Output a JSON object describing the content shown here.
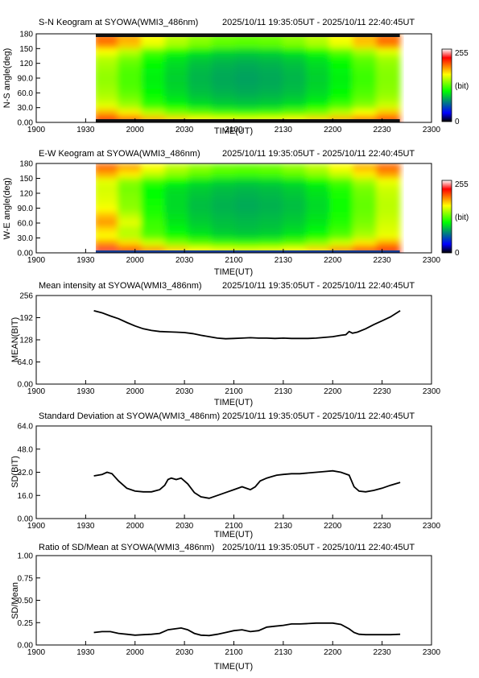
{
  "panels": [
    {
      "id": "sn",
      "title": "S-N Keogram at SYOWA(WMI3_486nm)",
      "time_range": "2025/10/11 19:35:05UT - 2025/10/11 22:40:45UT",
      "ylabel": "N-S angle(deg)",
      "xlabel": "TIME(UT)",
      "yticks": [
        "0.00",
        "30.0",
        "60.0",
        "90.0",
        "120",
        "150",
        "180"
      ],
      "xticks": [
        "1900",
        "1930",
        "2000",
        "2030",
        "2100",
        "2130",
        "2200",
        "2230",
        "2300"
      ],
      "colorbar": {
        "max": "255",
        "unit": "(bit)",
        "min": "0"
      }
    },
    {
      "id": "ew",
      "title": "E-W Keogram at SYOWA(WMI3_486nm)",
      "time_range": "2025/10/11 19:35:05UT - 2025/10/11 22:40:45UT",
      "ylabel": "W-E angle(deg)",
      "xlabel": "TIME(UT)",
      "yticks": [
        "0.00",
        "30.0",
        "60.0",
        "90.0",
        "120",
        "150",
        "180"
      ],
      "xticks": [
        "1900",
        "1930",
        "2000",
        "2030",
        "2100",
        "2130",
        "2200",
        "2230",
        "2300"
      ],
      "colorbar": {
        "max": "255",
        "unit": "(bit)",
        "min": "0"
      }
    },
    {
      "id": "mean",
      "title": "Mean intensity at SYOWA(WMI3_486nm)",
      "time_range": "2025/10/11 19:35:05UT - 2025/10/11 22:40:45UT",
      "ylabel": "MEAN(BIT)",
      "xlabel": "TIME(UT)",
      "yticks": [
        "0.00",
        "64.0",
        "128",
        "192",
        "256"
      ],
      "xticks": [
        "1900",
        "1930",
        "2000",
        "2030",
        "2100",
        "2130",
        "2200",
        "2230",
        "2300"
      ]
    },
    {
      "id": "sd",
      "title": "Standard Deviation at SYOWA(WMI3_486nm)",
      "time_range": "2025/10/11 19:35:05UT - 2025/10/11 22:40:45UT",
      "ylabel": "SD(BIT)",
      "xlabel": "TIME(UT)",
      "yticks": [
        "0.00",
        "16.0",
        "32.0",
        "48.0",
        "64.0"
      ],
      "xticks": [
        "1900",
        "1930",
        "2000",
        "2030",
        "2100",
        "2130",
        "2200",
        "2230",
        "2300"
      ]
    },
    {
      "id": "ratio",
      "title": "Ratio of SD/Mean at SYOWA(WMI3_486nm)",
      "time_range": "2025/10/11 19:35:05UT - 2025/10/11 22:40:45UT",
      "ylabel": "SD/Mean",
      "xlabel": "TIME(UT)",
      "yticks": [
        "0.00",
        "0.25",
        "0.50",
        "0.75",
        "1.00"
      ],
      "xticks": [
        "1900",
        "1930",
        "2000",
        "2030",
        "2100",
        "2130",
        "2200",
        "2230",
        "2300"
      ]
    }
  ],
  "chart_data": [
    {
      "type": "heatmap",
      "title": "S-N Keogram at SYOWA(WMI3_486nm)",
      "subtitle": "2025/10/11 19:35:05UT - 2025/10/11 22:40:45UT",
      "xlabel": "TIME(UT)",
      "ylabel": "N-S angle(deg)",
      "xlim": [
        1140,
        1380
      ],
      "ylim": [
        0,
        180
      ],
      "data_time_range_min": [
        1175.08,
        1360.75
      ],
      "colorbar": {
        "min": 0,
        "max": 255,
        "unit": "(bit)",
        "colors": [
          "#000000",
          "#0000ff",
          "#00ff00",
          "#ffff00",
          "#ff0000",
          "#ffffff"
        ]
      },
      "time_min": [
        1175,
        1190,
        1205,
        1220,
        1235,
        1250,
        1265,
        1280,
        1295,
        1310,
        1325,
        1340,
        1355
      ],
      "angle_deg": [
        0,
        15,
        30,
        45,
        60,
        75,
        90,
        105,
        120,
        135,
        150,
        165,
        180
      ],
      "values": [
        [
          225,
          205,
          185,
          175,
          168,
          162,
          160,
          162,
          168,
          175,
          185,
          200,
          215
        ],
        [
          185,
          170,
          150,
          135,
          128,
          122,
          120,
          122,
          128,
          135,
          150,
          165,
          180
        ],
        [
          160,
          145,
          120,
          110,
          100,
          95,
          93,
          95,
          100,
          110,
          125,
          140,
          155
        ],
        [
          150,
          135,
          112,
          100,
          92,
          88,
          86,
          88,
          92,
          100,
          112,
          130,
          145
        ],
        [
          145,
          128,
          106,
          96,
          88,
          84,
          82,
          84,
          88,
          96,
          106,
          125,
          140
        ],
        [
          142,
          125,
          104,
          94,
          86,
          82,
          80,
          82,
          86,
          94,
          104,
          122,
          138
        ],
        [
          140,
          124,
          103,
          93,
          85,
          81,
          79,
          81,
          85,
          93,
          103,
          120,
          137
        ],
        [
          142,
          125,
          104,
          94,
          86,
          82,
          80,
          82,
          86,
          94,
          104,
          122,
          138
        ],
        [
          145,
          128,
          106,
          96,
          88,
          84,
          82,
          84,
          88,
          96,
          106,
          125,
          140
        ],
        [
          150,
          135,
          112,
          100,
          92,
          88,
          86,
          88,
          92,
          100,
          112,
          130,
          145
        ],
        [
          165,
          150,
          125,
          112,
          102,
          97,
          95,
          97,
          102,
          112,
          128,
          145,
          160
        ],
        [
          195,
          180,
          160,
          145,
          135,
          128,
          126,
          128,
          135,
          145,
          160,
          178,
          195
        ],
        [
          200,
          185,
          165,
          150,
          140,
          132,
          130,
          132,
          140,
          150,
          165,
          182,
          200
        ]
      ]
    },
    {
      "type": "heatmap",
      "title": "E-W Keogram at SYOWA(WMI3_486nm)",
      "subtitle": "2025/10/11 19:35:05UT - 2025/10/11 22:40:45UT",
      "xlabel": "TIME(UT)",
      "ylabel": "W-E angle(deg)",
      "xlim": [
        1140,
        1380
      ],
      "ylim": [
        0,
        180
      ],
      "data_time_range_min": [
        1175.08,
        1360.75
      ],
      "colorbar": {
        "min": 0,
        "max": 255,
        "unit": "(bit)",
        "colors": [
          "#000000",
          "#0000ff",
          "#00ff00",
          "#ffff00",
          "#ff0000",
          "#ffffff"
        ]
      },
      "time_min": [
        1175,
        1190,
        1205,
        1220,
        1235,
        1250,
        1265,
        1280,
        1295,
        1310,
        1325,
        1340,
        1355
      ],
      "angle_deg": [
        0,
        15,
        30,
        45,
        60,
        75,
        90,
        105,
        120,
        135,
        150,
        165,
        180
      ],
      "values": [
        [
          230,
          210,
          190,
          175,
          165,
          160,
          158,
          160,
          165,
          175,
          190,
          210,
          225
        ],
        [
          190,
          175,
          155,
          138,
          128,
          122,
          120,
          122,
          128,
          140,
          155,
          172,
          188
        ],
        [
          165,
          150,
          128,
          112,
          102,
          96,
          94,
          96,
          102,
          112,
          128,
          148,
          162
        ],
        [
          175,
          150,
          122,
          105,
          96,
          90,
          88,
          90,
          96,
          105,
          120,
          140,
          158
        ],
        [
          190,
          160,
          120,
          100,
          92,
          88,
          86,
          88,
          92,
          100,
          115,
          135,
          155
        ],
        [
          180,
          150,
          115,
          98,
          90,
          86,
          84,
          86,
          90,
          98,
          112,
          132,
          152
        ],
        [
          165,
          140,
          112,
          96,
          88,
          84,
          82,
          84,
          88,
          96,
          110,
          130,
          150
        ],
        [
          160,
          138,
          110,
          96,
          88,
          84,
          82,
          84,
          88,
          96,
          110,
          130,
          150
        ],
        [
          158,
          136,
          108,
          96,
          90,
          86,
          84,
          86,
          90,
          98,
          112,
          132,
          152
        ],
        [
          156,
          134,
          108,
          98,
          92,
          88,
          86,
          88,
          92,
          100,
          115,
          135,
          155
        ],
        [
          160,
          140,
          120,
          108,
          100,
          96,
          94,
          96,
          100,
          110,
          125,
          145,
          162
        ],
        [
          185,
          170,
          150,
          138,
          128,
          122,
          120,
          122,
          128,
          138,
          152,
          170,
          188
        ],
        [
          200,
          185,
          165,
          150,
          140,
          132,
          130,
          132,
          140,
          150,
          165,
          182,
          200
        ]
      ]
    },
    {
      "type": "line",
      "title": "Mean intensity at SYOWA(WMI3_486nm)",
      "subtitle": "2025/10/11 19:35:05UT - 2025/10/11 22:40:45UT",
      "xlabel": "TIME(UT)",
      "ylabel": "MEAN(BIT)",
      "xlim": [
        1140,
        1380
      ],
      "ylim": [
        0,
        256
      ],
      "x": [
        1175,
        1180,
        1185,
        1190,
        1195,
        1200,
        1205,
        1210,
        1215,
        1220,
        1225,
        1230,
        1235,
        1240,
        1245,
        1250,
        1255,
        1260,
        1265,
        1270,
        1275,
        1280,
        1285,
        1290,
        1295,
        1300,
        1305,
        1310,
        1315,
        1320,
        1325,
        1328,
        1330,
        1332,
        1335,
        1340,
        1345,
        1350,
        1355,
        1361
      ],
      "y": [
        212,
        206,
        197,
        189,
        178,
        168,
        160,
        155,
        152,
        151,
        150,
        149,
        146,
        141,
        137,
        133,
        131,
        132,
        133,
        134,
        133,
        133,
        132,
        133,
        132,
        132,
        132,
        133,
        135,
        137,
        141,
        143,
        152,
        147,
        150,
        160,
        172,
        183,
        194,
        212
      ]
    },
    {
      "type": "line",
      "title": "Standard Deviation at SYOWA(WMI3_486nm)",
      "subtitle": "2025/10/11 19:35:05UT - 2025/10/11 22:40:45UT",
      "xlabel": "TIME(UT)",
      "ylabel": "SD(BIT)",
      "xlim": [
        1140,
        1380
      ],
      "ylim": [
        0,
        64
      ],
      "x": [
        1175,
        1180,
        1183,
        1186,
        1190,
        1195,
        1200,
        1205,
        1210,
        1215,
        1218,
        1220,
        1222,
        1225,
        1228,
        1232,
        1236,
        1240,
        1245,
        1250,
        1255,
        1260,
        1265,
        1270,
        1273,
        1276,
        1280,
        1283,
        1286,
        1290,
        1295,
        1300,
        1305,
        1310,
        1315,
        1320,
        1325,
        1330,
        1333,
        1336,
        1340,
        1345,
        1350,
        1355,
        1361
      ],
      "y": [
        29.5,
        30.5,
        32,
        31,
        26,
        21,
        19,
        18.5,
        18.5,
        20,
        23,
        27,
        28,
        27,
        28,
        24,
        18,
        15,
        14,
        16,
        18,
        20,
        22,
        20,
        22,
        26,
        28,
        29,
        30,
        30.5,
        31,
        31,
        31.5,
        32,
        32.5,
        33,
        32,
        30,
        22,
        19,
        18.5,
        19.5,
        21,
        23,
        25
      ]
    },
    {
      "type": "line",
      "title": "Ratio of SD/Mean at SYOWA(WMI3_486nm)",
      "subtitle": "2025/10/11 19:35:05UT - 2025/10/11 22:40:45UT",
      "xlabel": "TIME(UT)",
      "ylabel": "SD/Mean",
      "xlim": [
        1140,
        1380
      ],
      "ylim": [
        0,
        1
      ],
      "x": [
        1175,
        1180,
        1185,
        1190,
        1195,
        1200,
        1205,
        1210,
        1215,
        1220,
        1224,
        1228,
        1232,
        1236,
        1240,
        1245,
        1250,
        1255,
        1260,
        1265,
        1270,
        1275,
        1280,
        1285,
        1290,
        1295,
        1300,
        1305,
        1310,
        1315,
        1320,
        1325,
        1330,
        1333,
        1336,
        1340,
        1345,
        1350,
        1355,
        1361
      ],
      "y": [
        0.14,
        0.15,
        0.15,
        0.13,
        0.12,
        0.11,
        0.115,
        0.12,
        0.13,
        0.17,
        0.18,
        0.19,
        0.17,
        0.13,
        0.11,
        0.105,
        0.12,
        0.14,
        0.16,
        0.17,
        0.15,
        0.16,
        0.2,
        0.21,
        0.22,
        0.235,
        0.235,
        0.24,
        0.245,
        0.245,
        0.245,
        0.23,
        0.18,
        0.14,
        0.12,
        0.115,
        0.115,
        0.115,
        0.115,
        0.12
      ]
    }
  ]
}
